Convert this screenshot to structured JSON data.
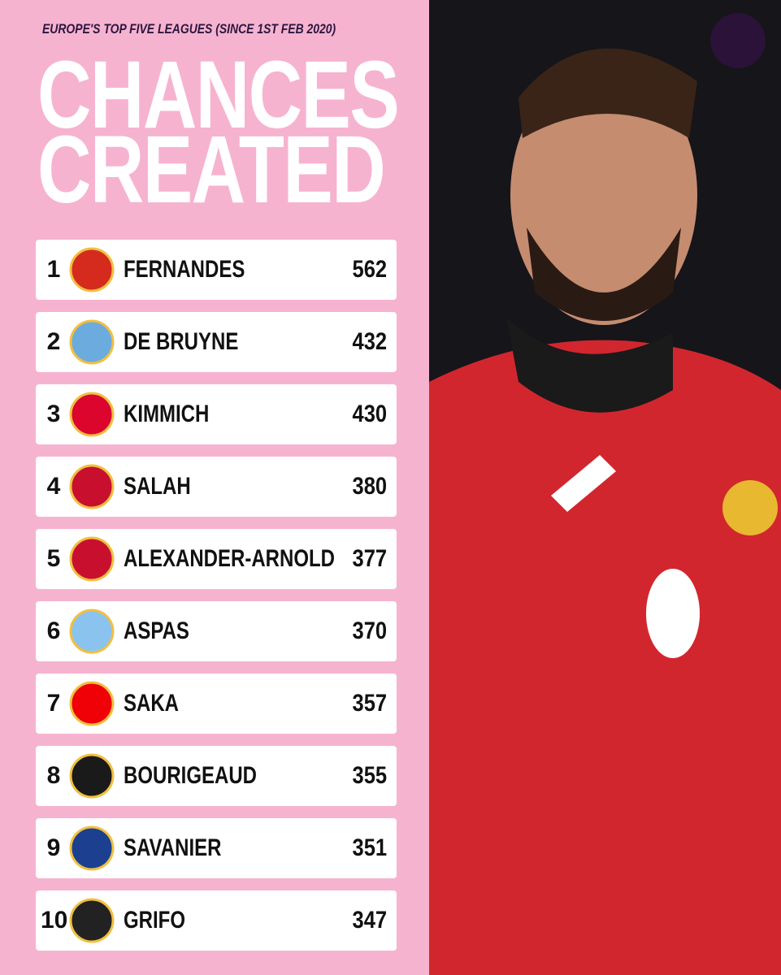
{
  "header": {
    "subtitle": "EUROPE'S TOP FIVE LEAGUES (SINCE 1ST FEB 2020)",
    "title": [
      "CHANCES",
      "CREATED"
    ]
  },
  "table": {
    "rows": [
      [
        1,
        "FERNANDES",
        562
      ],
      [
        2,
        "DE BRUYNE",
        432
      ],
      [
        3,
        "KIMMICH",
        430
      ],
      [
        4,
        "SALAH",
        380
      ],
      [
        5,
        "ALEXANDER-ARNOLD",
        377
      ],
      [
        6,
        "ASPAS",
        370
      ],
      [
        7,
        "SAKA",
        357
      ],
      [
        8,
        "BOURIGEAUD",
        355
      ],
      [
        9,
        "SAVANIER",
        351
      ],
      [
        10,
        "GRIFO",
        347
      ]
    ]
  }
}
